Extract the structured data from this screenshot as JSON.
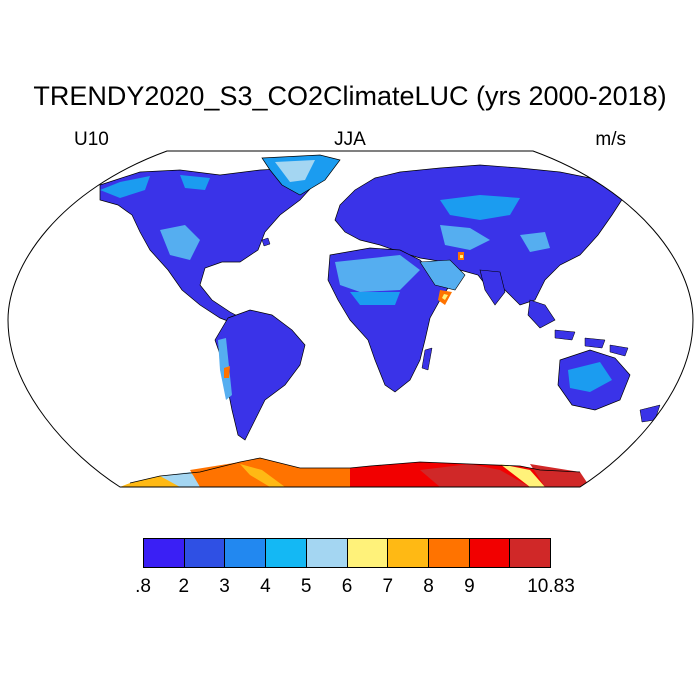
{
  "title": "TRENDY2020_S3_CO2ClimateLUC (yrs 2000-2018)",
  "left_label": "U10",
  "center_label": "JJA",
  "right_label": "m/s",
  "colorbar": {
    "colors": [
      "#3a1ff5",
      "#2f50e4",
      "#2288f0",
      "#14b8f4",
      "#a4d6f2",
      "#fff27a",
      "#ffb914",
      "#ff7300",
      "#f20000",
      "#d02828"
    ],
    "tick_labels": [
      ".8",
      "2",
      "3",
      "4",
      "5",
      "6",
      "7",
      "8",
      "9",
      "",
      "10.83"
    ]
  },
  "colors": {
    "land_base": "#3a33e8",
    "land_edge": "#1b9cf0",
    "dry_zone": "#55aef0",
    "hot_spot": "#ff7300",
    "coast": "#000000",
    "ocean": "#ffffff"
  }
}
